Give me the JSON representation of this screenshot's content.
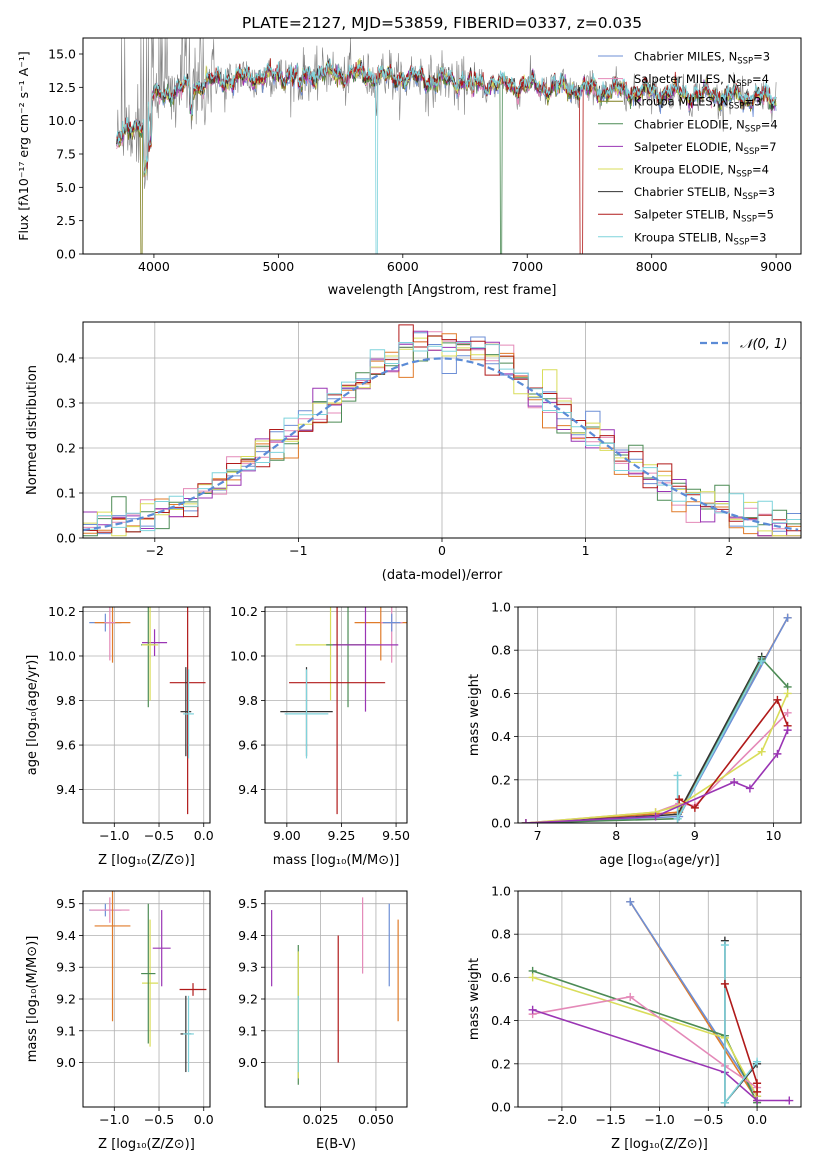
{
  "chart_data": [
    {
      "type": "line",
      "title": "PLATE=2127, MJD=53859, FIBERID=0337, z=0.035",
      "xlabel": "wavelength [Angstrom, rest frame]",
      "ylabel": "Flux [fλ10⁻¹⁷ erg cm⁻² s⁻¹ A⁻¹]",
      "xlim": [
        3430,
        9200
      ],
      "ylim": [
        0,
        16.2
      ],
      "xticks": [
        4000,
        5000,
        6000,
        7000,
        8000,
        9000
      ],
      "yticks": [
        0.0,
        2.5,
        5.0,
        7.5,
        10.0,
        12.5,
        15.0
      ],
      "legend": "top-right",
      "series": [
        {
          "name": "Chabrier MILES, N",
          "sub": "SSP",
          "suffix": "=3",
          "color": "#6d8fd6"
        },
        {
          "name": "Salpeter MILES, N",
          "sub": "SSP",
          "suffix": "=4",
          "color": "#e489b8"
        },
        {
          "name": "Kroupa MILES, N",
          "sub": "SSP",
          "suffix": "=3",
          "color": "#7f7f1f"
        },
        {
          "name": "Chabrier ELODIE, N",
          "sub": "SSP",
          "suffix": "=4",
          "color": "#4c8b55"
        },
        {
          "name": "Salpeter ELODIE, N",
          "sub": "SSP",
          "suffix": "=7",
          "color": "#9a35b4"
        },
        {
          "name": "Kroupa ELODIE, N",
          "sub": "SSP",
          "suffix": "=4",
          "color": "#d9dd5a"
        },
        {
          "name": "Chabrier STELIB, N",
          "sub": "SSP",
          "suffix": "=3",
          "color": "#333333"
        },
        {
          "name": "Salpeter STELIB, N",
          "sub": "SSP",
          "suffix": "=5",
          "color": "#b01a1a"
        },
        {
          "name": "Kroupa STELIB, N",
          "sub": "SSP",
          "suffix": "=3",
          "color": "#7fd3dc"
        }
      ],
      "extra_colors": {
        "data": "#808080",
        "orange": "#e07b2a"
      },
      "continuum_points": [
        [
          3700,
          8.5
        ],
        [
          3900,
          9.8
        ],
        [
          4000,
          11.8
        ],
        [
          4200,
          12.3
        ],
        [
          4500,
          13.0
        ],
        [
          5000,
          13.4
        ],
        [
          5500,
          13.5
        ],
        [
          6000,
          13.2
        ],
        [
          6500,
          12.9
        ],
        [
          7000,
          12.6
        ],
        [
          7500,
          12.3
        ],
        [
          8000,
          12.1
        ],
        [
          8500,
          11.9
        ],
        [
          9000,
          11.6
        ]
      ]
    },
    {
      "type": "step",
      "xlabel": "(data-model)/error",
      "ylabel": "Normed distribution",
      "xlim": [
        -2.5,
        2.5
      ],
      "ylim": [
        0,
        0.48
      ],
      "xticks": [
        -2,
        -1,
        0,
        1,
        2
      ],
      "xtick_labels": [
        "−2",
        "−1",
        "0",
        "1",
        "2"
      ],
      "yticks": [
        0.0,
        0.1,
        0.2,
        0.3,
        0.4
      ],
      "legend": "top-right",
      "legend_entry": "𝒩(0, 1)",
      "gauss_color": "#5b8bd6",
      "bin_width": 0.1,
      "hist_colors": [
        "#6d8fd6",
        "#e489b8",
        "#e07b2a",
        "#4c8b55",
        "#9a35b4",
        "#d9dd5a",
        "#b01a1a",
        "#7fd3dc"
      ]
    },
    {
      "type": "errorbar",
      "xlabel": "Z [log₁₀(Z/Z⊙)]",
      "ylabel": "age  [log₁₀(age/yr)]",
      "xlim": [
        -1.35,
        0.07
      ],
      "ylim": [
        9.25,
        10.22
      ],
      "xticks": [
        -1.0,
        -0.5,
        0.0
      ],
      "xtick_labels": [
        "−1.0",
        "−0.5",
        "0.0"
      ],
      "yticks": [
        9.4,
        9.6,
        9.8,
        10.0,
        10.2
      ],
      "points": [
        {
          "x": -1.1,
          "y": 10.15,
          "xerr": 0.18,
          "yerr": 0.04,
          "color": "#6d8fd6"
        },
        {
          "x": -1.02,
          "y": 10.15,
          "xerr": 0.2,
          "yerr": 0.18,
          "color": "#e07b2a"
        },
        {
          "x": -1.05,
          "y": 10.15,
          "xerr": 0.06,
          "yerr": 0.17,
          "color": "#e489b8"
        },
        {
          "x": -0.55,
          "y": 10.06,
          "xerr": 0.14,
          "yerr": 0.06,
          "color": "#9a35b4"
        },
        {
          "x": -0.62,
          "y": 10.05,
          "xerr": 0.08,
          "yerr": 0.28,
          "color": "#4c8b55"
        },
        {
          "x": -0.6,
          "y": 10.05,
          "xerr": 0.09,
          "yerr": 0.25,
          "color": "#d9dd5a"
        },
        {
          "x": -0.18,
          "y": 9.88,
          "xerr": 0.2,
          "yerr": 0.59,
          "color": "#b01a1a"
        },
        {
          "x": -0.2,
          "y": 9.75,
          "xerr": 0.06,
          "yerr": 0.2,
          "color": "#333333"
        },
        {
          "x": -0.17,
          "y": 9.74,
          "xerr": 0.06,
          "yerr": 0.2,
          "color": "#7fd3dc"
        }
      ]
    },
    {
      "type": "errorbar",
      "xlabel": "mass [log₁₀(M/M⊙)]",
      "ylabel": "",
      "xlim": [
        8.9,
        9.55
      ],
      "ylim": [
        9.25,
        10.22
      ],
      "xticks": [
        9.0,
        9.25,
        9.5
      ],
      "xtick_labels": [
        "9.00",
        "9.25",
        "9.50"
      ],
      "yticks": [
        9.4,
        9.6,
        9.8,
        10.0,
        10.2
      ],
      "points": [
        {
          "x": 9.43,
          "y": 10.15,
          "xerr": 0.12,
          "yerr": 0.17,
          "color": "#e07b2a"
        },
        {
          "x": 9.48,
          "y": 10.15,
          "xerr": 0.05,
          "yerr": 0.18,
          "color": "#e489b8"
        },
        {
          "x": 9.48,
          "y": 10.15,
          "xerr": 0.04,
          "yerr": 0.04,
          "color": "#6d8fd6"
        },
        {
          "x": 9.2,
          "y": 10.05,
          "xerr": 0.16,
          "yerr": 0.25,
          "color": "#d9dd5a"
        },
        {
          "x": 9.28,
          "y": 10.05,
          "xerr": 0.1,
          "yerr": 0.28,
          "color": "#4c8b55"
        },
        {
          "x": 9.36,
          "y": 10.05,
          "xerr": 0.15,
          "yerr": 0.3,
          "color": "#9a35b4"
        },
        {
          "x": 9.23,
          "y": 9.88,
          "xerr": 0.22,
          "yerr": 0.59,
          "color": "#b01a1a"
        },
        {
          "x": 9.09,
          "y": 9.75,
          "xerr": 0.12,
          "yerr": 0.2,
          "color": "#333333"
        },
        {
          "x": 9.09,
          "y": 9.74,
          "xerr": 0.1,
          "yerr": 0.2,
          "color": "#7fd3dc"
        }
      ]
    },
    {
      "type": "line",
      "xlabel": "age  [log₁₀(age/yr)]",
      "ylabel": "mass weight",
      "xlim": [
        6.75,
        10.35
      ],
      "ylim": [
        0,
        1.0
      ],
      "xticks": [
        7,
        8,
        9,
        10
      ],
      "yticks": [
        0.0,
        0.2,
        0.4,
        0.6,
        0.8,
        1.0
      ],
      "series": [
        {
          "color": "#e07b2a",
          "points": [
            [
              6.85,
              0.0
            ],
            [
              8.8,
              0.05
            ],
            [
              10.18,
              0.95
            ]
          ]
        },
        {
          "color": "#6d8fd6",
          "points": [
            [
              6.85,
              0.0
            ],
            [
              8.8,
              0.03
            ],
            [
              10.18,
              0.95
            ]
          ]
        },
        {
          "color": "#333333",
          "points": [
            [
              6.85,
              0.0
            ],
            [
              8.78,
              0.04
            ],
            [
              9.85,
              0.77
            ]
          ]
        },
        {
          "color": "#4c8b55",
          "points": [
            [
              6.85,
              0.0
            ],
            [
              8.78,
              0.02
            ],
            [
              9.85,
              0.76
            ],
            [
              10.18,
              0.63
            ]
          ]
        },
        {
          "color": "#7fd3dc",
          "points": [
            [
              8.78,
              0.22
            ],
            [
              8.78,
              0.02
            ],
            [
              9.85,
              0.75
            ]
          ]
        },
        {
          "color": "#e489b8",
          "points": [
            [
              6.85,
              0.0
            ],
            [
              8.5,
              0.05
            ],
            [
              8.8,
              0.09
            ],
            [
              9.0,
              0.08
            ],
            [
              10.18,
              0.51
            ]
          ]
        },
        {
          "color": "#d9dd5a",
          "points": [
            [
              6.85,
              0.0
            ],
            [
              8.5,
              0.05
            ],
            [
              8.8,
              0.08
            ],
            [
              9.85,
              0.33
            ],
            [
              10.18,
              0.6
            ]
          ]
        },
        {
          "color": "#b01a1a",
          "points": [
            [
              8.8,
              0.11
            ],
            [
              9.0,
              0.07
            ],
            [
              10.05,
              0.57
            ],
            [
              10.18,
              0.45
            ]
          ]
        },
        {
          "color": "#9a35b4",
          "points": [
            [
              6.85,
              0.0
            ],
            [
              8.5,
              0.03
            ],
            [
              9.5,
              0.19
            ],
            [
              9.7,
              0.16
            ],
            [
              10.05,
              0.32
            ],
            [
              10.18,
              0.43
            ]
          ]
        }
      ]
    },
    {
      "type": "errorbar",
      "xlabel": "Z [log₁₀(Z/Z⊙)]",
      "ylabel": "mass [log₁₀(M/M⊙)]",
      "xlim": [
        -1.35,
        0.07
      ],
      "ylim": [
        8.86,
        9.54
      ],
      "xticks": [
        -1.0,
        -0.5,
        0.0
      ],
      "xtick_labels": [
        "−1.0",
        "−0.5",
        "0.0"
      ],
      "yticks": [
        9.0,
        9.1,
        9.2,
        9.3,
        9.4,
        9.5
      ],
      "points": [
        {
          "x": -1.1,
          "y": 9.48,
          "xerr": 0.18,
          "yerr": 0.02,
          "color": "#6d8fd6"
        },
        {
          "x": -1.05,
          "y": 9.48,
          "xerr": 0.22,
          "yerr": 0.04,
          "color": "#e489b8"
        },
        {
          "x": -1.02,
          "y": 9.43,
          "xerr": 0.2,
          "yerr": 0.3,
          "color": "#e07b2a"
        },
        {
          "x": -0.6,
          "y": 9.25,
          "xerr": 0.09,
          "yerr": 0.2,
          "color": "#d9dd5a"
        },
        {
          "x": -0.62,
          "y": 9.28,
          "xerr": 0.08,
          "yerr": 0.22,
          "color": "#4c8b55"
        },
        {
          "x": -0.47,
          "y": 9.36,
          "xerr": 0.1,
          "yerr": 0.12,
          "color": "#9a35b4"
        },
        {
          "x": -0.12,
          "y": 9.23,
          "xerr": 0.15,
          "yerr": 0.02,
          "color": "#b01a1a"
        },
        {
          "x": -0.2,
          "y": 9.09,
          "xerr": 0.06,
          "yerr": 0.12,
          "color": "#333333"
        },
        {
          "x": -0.17,
          "y": 9.09,
          "xerr": 0.06,
          "yerr": 0.12,
          "color": "#7fd3dc"
        }
      ]
    },
    {
      "type": "errorbar",
      "xlabel": "E(B-V)",
      "ylabel": "",
      "xlim": [
        0.0,
        0.064
      ],
      "ylim": [
        8.86,
        9.54
      ],
      "xticks": [
        0.025,
        0.05
      ],
      "xtick_labels": [
        "0.025",
        "0.050"
      ],
      "yticks": [
        9.0,
        9.1,
        9.2,
        9.3,
        9.4,
        9.5
      ],
      "points": [
        {
          "x": 0.003,
          "y": 9.36,
          "xerr": 0,
          "yerr": 0.12,
          "color": "#9a35b4"
        },
        {
          "x": 0.015,
          "y": 9.15,
          "xerr": 0,
          "yerr": 0.22,
          "color": "#4c8b55"
        },
        {
          "x": 0.015,
          "y": 9.15,
          "xerr": 0,
          "yerr": 0.2,
          "color": "#d9dd5a"
        },
        {
          "x": 0.015,
          "y": 9.09,
          "xerr": 0,
          "yerr": 0.12,
          "color": "#7fd3dc"
        },
        {
          "x": 0.033,
          "y": 9.2,
          "xerr": 0,
          "yerr": 0.2,
          "color": "#b01a1a"
        },
        {
          "x": 0.044,
          "y": 9.4,
          "xerr": 0,
          "yerr": 0.12,
          "color": "#e489b8"
        },
        {
          "x": 0.056,
          "y": 9.37,
          "xerr": 0,
          "yerr": 0.13,
          "color": "#6d8fd6"
        },
        {
          "x": 0.06,
          "y": 9.29,
          "xerr": 0,
          "yerr": 0.16,
          "color": "#e07b2a"
        }
      ]
    },
    {
      "type": "line",
      "xlabel": "Z [log₁₀(Z/Z⊙)]",
      "ylabel": "mass weight",
      "xlim": [
        -2.45,
        0.45
      ],
      "ylim": [
        0,
        1.0
      ],
      "xticks": [
        -2.0,
        -1.5,
        -1.0,
        -0.5,
        0.0
      ],
      "xtick_labels": [
        "−2.0",
        "−1.5",
        "−1.0",
        "−0.5",
        "0.0"
      ],
      "yticks": [
        0.0,
        0.2,
        0.4,
        0.6,
        0.8,
        1.0
      ],
      "series": [
        {
          "color": "#e07b2a",
          "points": [
            [
              -1.3,
              0.95
            ],
            [
              0.0,
              0.03
            ]
          ]
        },
        {
          "color": "#6d8fd6",
          "points": [
            [
              -1.3,
              0.95
            ],
            [
              0.0,
              0.05
            ]
          ]
        },
        {
          "color": "#4c8b55",
          "points": [
            [
              -2.3,
              0.63
            ],
            [
              -0.33,
              0.33
            ],
            [
              0.0,
              0.02
            ]
          ]
        },
        {
          "color": "#d9dd5a",
          "points": [
            [
              -2.3,
              0.6
            ],
            [
              -0.33,
              0.32
            ],
            [
              0.0,
              0.05
            ]
          ]
        },
        {
          "color": "#e489b8",
          "points": [
            [
              -2.3,
              0.43
            ],
            [
              -1.3,
              0.51
            ],
            [
              -0.33,
              0.19
            ],
            [
              0.0,
              0.09
            ]
          ]
        },
        {
          "color": "#9a35b4",
          "points": [
            [
              -2.3,
              0.45
            ],
            [
              -0.33,
              0.16
            ],
            [
              0.0,
              0.03
            ],
            [
              0.33,
              0.03
            ]
          ]
        },
        {
          "color": "#333333",
          "points": [
            [
              -0.33,
              0.77
            ],
            [
              -0.33,
              0.02
            ],
            [
              0.0,
              0.2
            ]
          ]
        },
        {
          "color": "#7fd3dc",
          "points": [
            [
              -0.33,
              0.75
            ],
            [
              -0.33,
              0.02
            ],
            [
              0.0,
              0.21
            ]
          ]
        },
        {
          "color": "#b01a1a",
          "points": [
            [
              -0.33,
              0.57
            ],
            [
              0.0,
              0.11
            ],
            [
              0.0,
              0.07
            ]
          ]
        }
      ]
    }
  ]
}
